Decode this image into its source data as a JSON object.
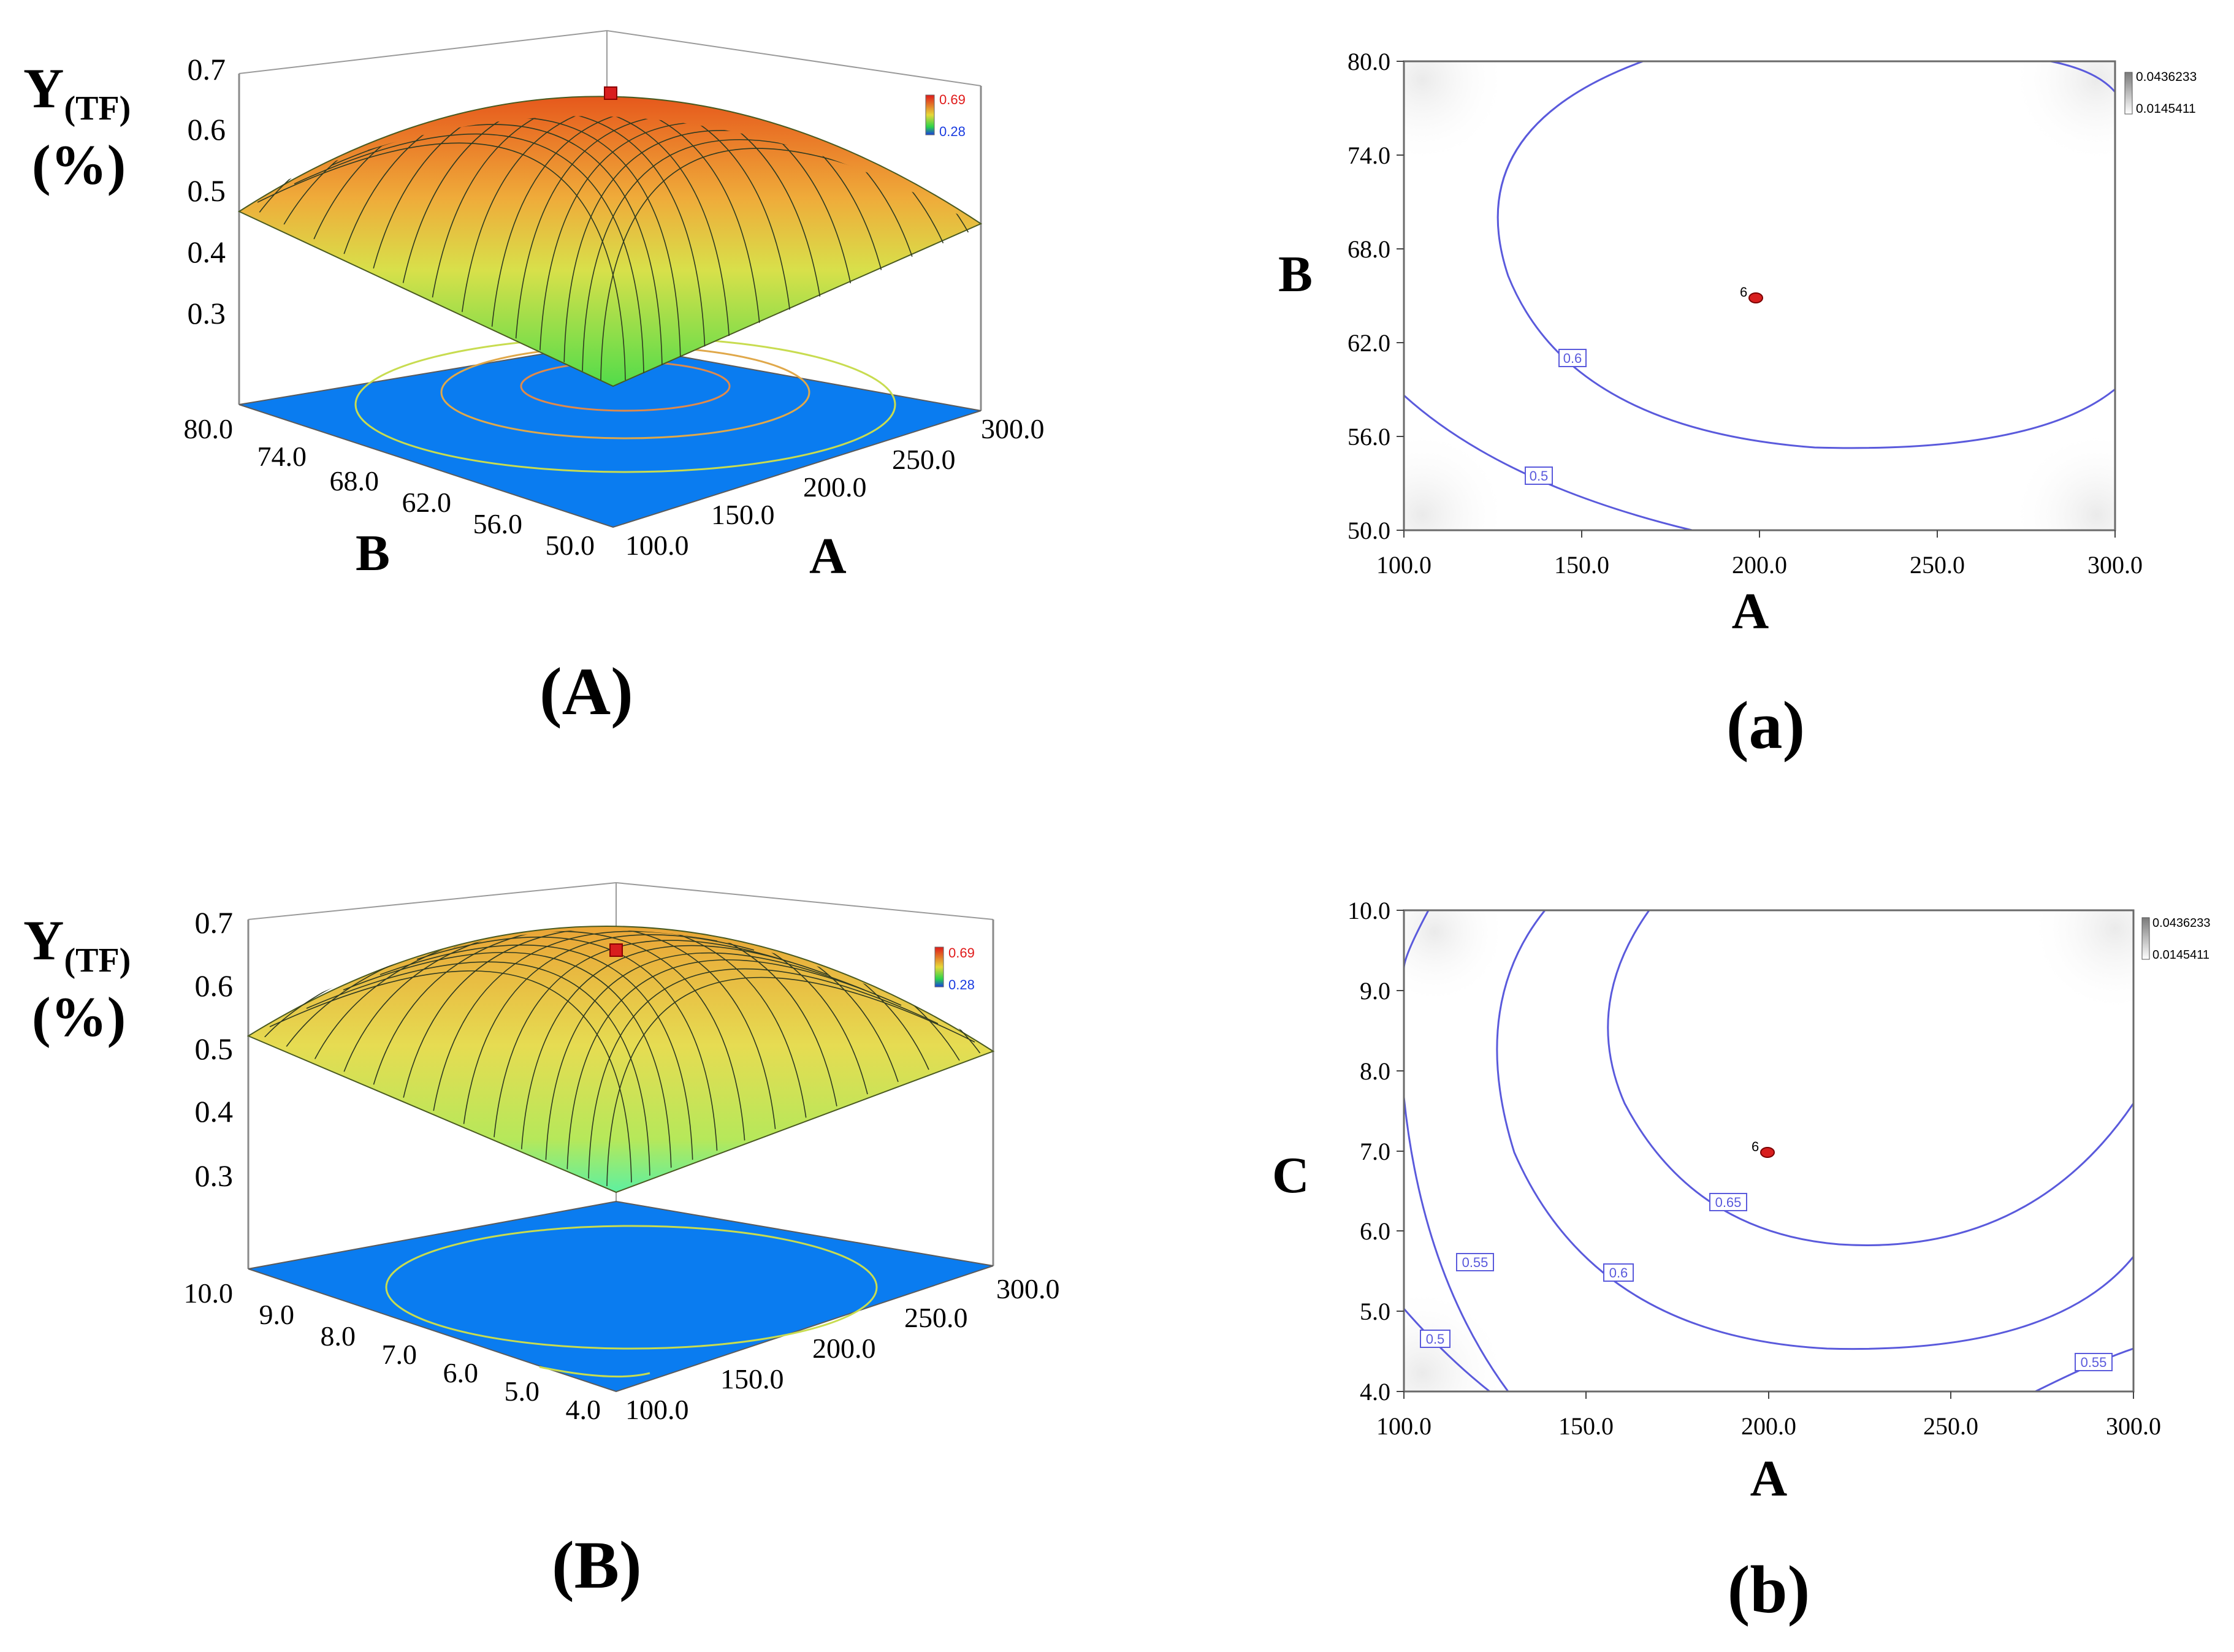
{
  "panels": {
    "A": {
      "caption": "(A)",
      "z_label_main": "Y",
      "z_label_sub": "(TF)",
      "z_label_unit": "(%)",
      "x_axis_label": "A",
      "y_axis_label": "B",
      "z_ticks": [
        "0.7",
        "0.6",
        "0.5",
        "0.4",
        "0.3"
      ],
      "x_ticks": [
        "100.0",
        "150.0",
        "200.0",
        "250.0",
        "300.0"
      ],
      "y_ticks": [
        "80.0",
        "74.0",
        "68.0",
        "62.0",
        "56.0",
        "50.0"
      ],
      "legend_high": "0.69",
      "legend_low": "0.28"
    },
    "B": {
      "caption": "(B)",
      "z_label_main": "Y",
      "z_label_sub": "(TF)",
      "z_label_unit": "(%)",
      "x_axis_label": "A",
      "y_axis_label": "",
      "z_ticks": [
        "0.7",
        "0.6",
        "0.5",
        "0.4",
        "0.3"
      ],
      "x_ticks": [
        "100.0",
        "150.0",
        "200.0",
        "250.0",
        "300.0"
      ],
      "y_ticks": [
        "10.0",
        "9.0",
        "8.0",
        "7.0",
        "6.0",
        "5.0",
        "4.0"
      ],
      "legend_high": "0.69",
      "legend_low": "0.28"
    },
    "a": {
      "caption": "(a)",
      "x_axis_label": "A",
      "y_axis_label": "B",
      "x_ticks": [
        "100.0",
        "150.0",
        "200.0",
        "250.0",
        "300.0"
      ],
      "y_ticks": [
        "80.0",
        "74.0",
        "68.0",
        "62.0",
        "56.0",
        "50.0"
      ],
      "legend_high": "0.0436233",
      "legend_low": "0.0145411",
      "point_label": "6",
      "contour_labels": [
        "0.6",
        "0.5"
      ]
    },
    "b": {
      "caption": "(b)",
      "x_axis_label": "A",
      "y_axis_label": "C",
      "x_ticks": [
        "100.0",
        "150.0",
        "200.0",
        "250.0",
        "300.0"
      ],
      "y_ticks": [
        "10.0",
        "9.0",
        "8.0",
        "7.0",
        "6.0",
        "5.0",
        "4.0"
      ],
      "legend_high": "0.0436233",
      "legend_low": "0.0145411",
      "point_label": "6",
      "contour_labels": [
        "0.65",
        "0.6",
        "0.55",
        "0.5",
        "0.55"
      ]
    }
  },
  "colors": {
    "surface_high": "#e85a1c",
    "surface_mid": "#e8d84a",
    "surface_low": "#5ee04a",
    "floor": "#0a7cf0",
    "contour_line": "#5a5adc",
    "point": "#d81e1e"
  },
  "chart_data": [
    {
      "type": "surface",
      "panel": "A",
      "x_name": "A",
      "x_range": [
        100.0,
        300.0
      ],
      "y_name": "B",
      "y_range": [
        50.0,
        80.0
      ],
      "z_range": [
        0.28,
        0.69
      ],
      "optimum": {
        "A": 200.0,
        "B": 65.0,
        "Y": 0.69
      }
    },
    {
      "type": "surface",
      "panel": "B",
      "x_name": "A",
      "x_range": [
        100.0,
        300.0
      ],
      "y_name": "C",
      "y_range": [
        4.0,
        10.0
      ],
      "z_range": [
        0.28,
        0.69
      ],
      "optimum": {
        "A": 200.0,
        "C": 7.0,
        "Y": 0.69
      }
    },
    {
      "type": "contour",
      "panel": "a",
      "x_name": "A",
      "x_range": [
        100.0,
        300.0
      ],
      "y_name": "B",
      "y_range": [
        50.0,
        80.0
      ],
      "levels": [
        0.5,
        0.6
      ],
      "design_point": {
        "A": 200.0,
        "B": 65.0,
        "label": "6"
      }
    },
    {
      "type": "contour",
      "panel": "b",
      "x_name": "A",
      "x_range": [
        100.0,
        300.0
      ],
      "y_name": "C",
      "y_range": [
        4.0,
        10.0
      ],
      "levels": [
        0.5,
        0.55,
        0.6,
        0.65
      ],
      "design_point": {
        "A": 200.0,
        "C": 7.0,
        "label": "6"
      }
    }
  ]
}
